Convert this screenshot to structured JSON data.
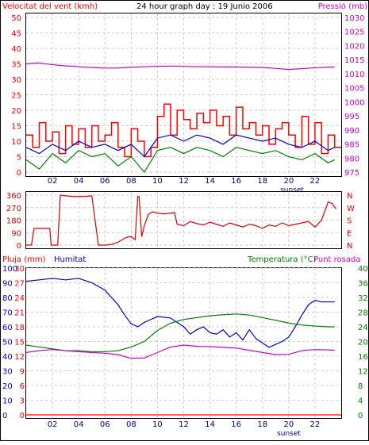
{
  "header": {
    "wind_title": "Velocitat del vent (kmh)",
    "main_title": "24 hour graph day : 19 Junio 2006",
    "pressure_title": "Pressió (mb)"
  },
  "colors": {
    "wind_speed": "#ff0000",
    "wind_avg": "#0000cc",
    "wind_gust_low": "#008000",
    "pressure": "#cc00cc",
    "direction": "#dd0000",
    "humidity": "#0000cc",
    "temperature": "#008000",
    "dewpoint": "#cc00cc",
    "rain": "#ff0000",
    "grid": "#cccccc",
    "frame": "#000000"
  },
  "chart_data": [
    {
      "type": "line",
      "panel": "wind-pressure",
      "x_tick_labels": [
        "02",
        "04",
        "06",
        "08",
        "10",
        "12",
        "14",
        "16",
        "18",
        "20",
        "22"
      ],
      "x_range": [
        0,
        24
      ],
      "sunset_label": "sunset",
      "sunset_hour": 20,
      "left_axis": {
        "ticks": [
          "0",
          "5",
          "10",
          "15",
          "20",
          "25",
          "30",
          "35",
          "40",
          "45",
          "50"
        ],
        "range": [
          0,
          50
        ]
      },
      "right_axis": {
        "ticks": [
          "975",
          "980",
          "985",
          "990",
          "995",
          "1000",
          "1005",
          "1010",
          "1015",
          "1020",
          "1025",
          "1030"
        ],
        "range": [
          975,
          1030
        ]
      },
      "series": [
        {
          "name": "Velocitat del vent (kmh)",
          "x": [
            0,
            0.5,
            1,
            1.5,
            2,
            2.5,
            3,
            3.5,
            4,
            4.5,
            5,
            5.5,
            6,
            6.5,
            7,
            7.5,
            8,
            8.5,
            9,
            9.5,
            10,
            10.5,
            11,
            11.5,
            12,
            12.5,
            13,
            13.5,
            14,
            14.5,
            15,
            15.5,
            16,
            16.5,
            17,
            17.5,
            18,
            18.5,
            19,
            19.5,
            20,
            20.5,
            21,
            21.5,
            22,
            22.5,
            23,
            23.5
          ],
          "values": [
            12,
            8,
            16,
            10,
            13,
            6,
            15,
            9,
            14,
            8,
            15,
            10,
            12,
            16,
            8,
            5,
            14,
            10,
            5,
            8,
            18,
            22,
            12,
            20,
            17,
            14,
            19,
            16,
            20,
            15,
            18,
            12,
            21,
            14,
            16,
            12,
            15,
            9,
            14,
            16,
            12,
            8,
            18,
            9,
            16,
            6,
            12,
            8
          ]
        },
        {
          "name": "Velocitat mitjana",
          "x": [
            0,
            1,
            2,
            3,
            4,
            5,
            6,
            7,
            8,
            9,
            10,
            11,
            12,
            13,
            14,
            15,
            16,
            17,
            18,
            19,
            20,
            21,
            22,
            23,
            23.5
          ],
          "values": [
            8,
            6,
            9,
            7,
            10,
            8,
            9,
            7,
            9,
            5,
            11,
            12,
            10,
            12,
            11,
            9,
            12,
            11,
            10,
            11,
            9,
            8,
            10,
            7,
            8
          ]
        },
        {
          "name": "Velocitat mínima",
          "x": [
            0,
            1,
            2,
            3,
            4,
            5,
            6,
            7,
            8,
            9,
            10,
            11,
            12,
            13,
            14,
            15,
            16,
            17,
            18,
            19,
            20,
            21,
            22,
            23,
            23.5
          ],
          "values": [
            4,
            1,
            6,
            3,
            7,
            5,
            6,
            2,
            5,
            0,
            7,
            8,
            6,
            8,
            7,
            5,
            8,
            7,
            6,
            7,
            5,
            4,
            6,
            3,
            4
          ]
        },
        {
          "name": "Pressió (mb)",
          "axis": "right",
          "x": [
            0,
            1,
            2,
            3,
            4,
            5,
            6,
            7,
            8,
            9,
            10,
            11,
            12,
            13,
            14,
            15,
            16,
            17,
            18,
            19,
            20,
            21,
            22,
            23,
            23.5
          ],
          "values": [
            1013.5,
            1013.8,
            1013.2,
            1012.8,
            1012.5,
            1012.2,
            1012.0,
            1012.0,
            1012.3,
            1012.5,
            1012.6,
            1012.7,
            1012.6,
            1012.5,
            1012.5,
            1012.4,
            1012.4,
            1012.3,
            1012.2,
            1011.9,
            1011.5,
            1011.8,
            1012.1,
            1012.3,
            1012.4
          ]
        }
      ]
    },
    {
      "type": "line",
      "panel": "wind-direction",
      "x_range": [
        0,
        24
      ],
      "left_axis": {
        "ticks": [
          "0",
          "90",
          "180",
          "270",
          "360"
        ],
        "range": [
          0,
          360
        ]
      },
      "right_axis_labels": [
        "N",
        "W",
        "S",
        "E",
        "N"
      ],
      "series": [
        {
          "name": "Direcció",
          "x": [
            0,
            0.4,
            0.6,
            1.8,
            1.9,
            2.4,
            2.6,
            3.5,
            4.5,
            5,
            5.5,
            6,
            6.5,
            7,
            7.5,
            7.8,
            8,
            8.3,
            8.5,
            8.6,
            8.8,
            9,
            9.3,
            9.6,
            10,
            10.5,
            11,
            11.3,
            11.5,
            12,
            12.5,
            13,
            13.5,
            14,
            14.5,
            15,
            15.5,
            16,
            16.5,
            17,
            17.5,
            18,
            18.5,
            19,
            19.5,
            20,
            20.5,
            21,
            21.5,
            22,
            22.5,
            23,
            23.3,
            23.6
          ],
          "values": [
            0,
            0,
            120,
            120,
            0,
            0,
            360,
            350,
            350,
            355,
            0,
            0,
            5,
            20,
            50,
            60,
            60,
            40,
            350,
            350,
            60,
            140,
            220,
            240,
            230,
            225,
            230,
            235,
            150,
            140,
            170,
            155,
            145,
            165,
            150,
            135,
            160,
            145,
            130,
            150,
            140,
            120,
            145,
            135,
            160,
            140,
            150,
            160,
            170,
            130,
            180,
            310,
            300,
            260
          ]
        }
      ]
    },
    {
      "type": "line",
      "panel": "rain-humidity-temperature",
      "x_tick_labels": [
        "02",
        "04",
        "06",
        "08",
        "10",
        "12",
        "14",
        "16",
        "18",
        "20",
        "22"
      ],
      "x_range": [
        0,
        24
      ],
      "sunset_label": "sunset",
      "titles": {
        "rain": "Pluja (mm)",
        "humidity": "Humitat",
        "temperature": "Temperatura (°C)",
        "dewpoint": "Punt rosada"
      },
      "rain_axis": {
        "ticks": [
          "0",
          "3",
          "6",
          "9",
          "12",
          "15",
          "18",
          "21",
          "24",
          "27",
          "30"
        ],
        "range": [
          0,
          30
        ]
      },
      "humidity_axis": {
        "ticks": [
          "0",
          "10",
          "20",
          "30",
          "40",
          "50",
          "60",
          "70",
          "80",
          "90",
          "100"
        ],
        "range": [
          0,
          100
        ]
      },
      "temperature_axis": {
        "ticks": [
          "0",
          "4",
          "8",
          "12",
          "16",
          "20",
          "24",
          "28",
          "32",
          "36",
          "40"
        ],
        "range": [
          0,
          40
        ]
      },
      "series": [
        {
          "name": "Humitat",
          "axis": "humidity",
          "x": [
            0,
            1,
            2,
            3,
            4,
            5,
            6,
            6.5,
            7,
            7.5,
            8,
            8.5,
            9,
            9.5,
            10,
            11,
            12,
            12.5,
            13,
            13.5,
            14,
            14.5,
            15,
            15.5,
            16,
            16.5,
            17,
            17.5,
            18,
            18.5,
            19,
            19.5,
            20,
            20.5,
            21,
            21.5,
            22,
            22.5,
            23,
            23.5
          ],
          "values": [
            91,
            92,
            93,
            92,
            93,
            90,
            85,
            80,
            75,
            68,
            62,
            60,
            63,
            65,
            67,
            66,
            60,
            55,
            58,
            60,
            56,
            55,
            58,
            53,
            56,
            51,
            58,
            52,
            49,
            46,
            48,
            50,
            53,
            60,
            68,
            75,
            78,
            77,
            77,
            77
          ]
        },
        {
          "name": "Temperatura (°C)",
          "axis": "temperature",
          "x": [
            0,
            1,
            2,
            3,
            4,
            5,
            6,
            7,
            8,
            9,
            10,
            11,
            12,
            13,
            14,
            15,
            16,
            17,
            18,
            19,
            20,
            21,
            22,
            23,
            23.5
          ],
          "values": [
            19,
            18.5,
            18,
            17.5,
            17.5,
            17.2,
            17.2,
            17.5,
            18.5,
            20,
            23,
            25,
            26,
            26.5,
            27,
            27.3,
            27.5,
            27.2,
            26.5,
            25.8,
            25,
            24.5,
            24.2,
            24,
            24
          ]
        },
        {
          "name": "Punt rosada",
          "axis": "temperature",
          "x": [
            0,
            1,
            2,
            3,
            4,
            5,
            6,
            7,
            8,
            9,
            10,
            11,
            12,
            13,
            14,
            15,
            16,
            17,
            18,
            19,
            20,
            21,
            22,
            23,
            23.5
          ],
          "values": [
            17,
            17.5,
            17.8,
            17.5,
            17.2,
            17,
            16.8,
            16.4,
            15.4,
            15.5,
            17,
            18.5,
            19,
            18.7,
            18.6,
            18.4,
            18.2,
            17.6,
            17,
            16.4,
            16.5,
            17.5,
            17.8,
            17.7,
            17.6
          ]
        },
        {
          "name": "Pluja (mm)",
          "axis": "rain",
          "x": [
            0,
            24
          ],
          "values": [
            0,
            0
          ]
        }
      ]
    }
  ]
}
